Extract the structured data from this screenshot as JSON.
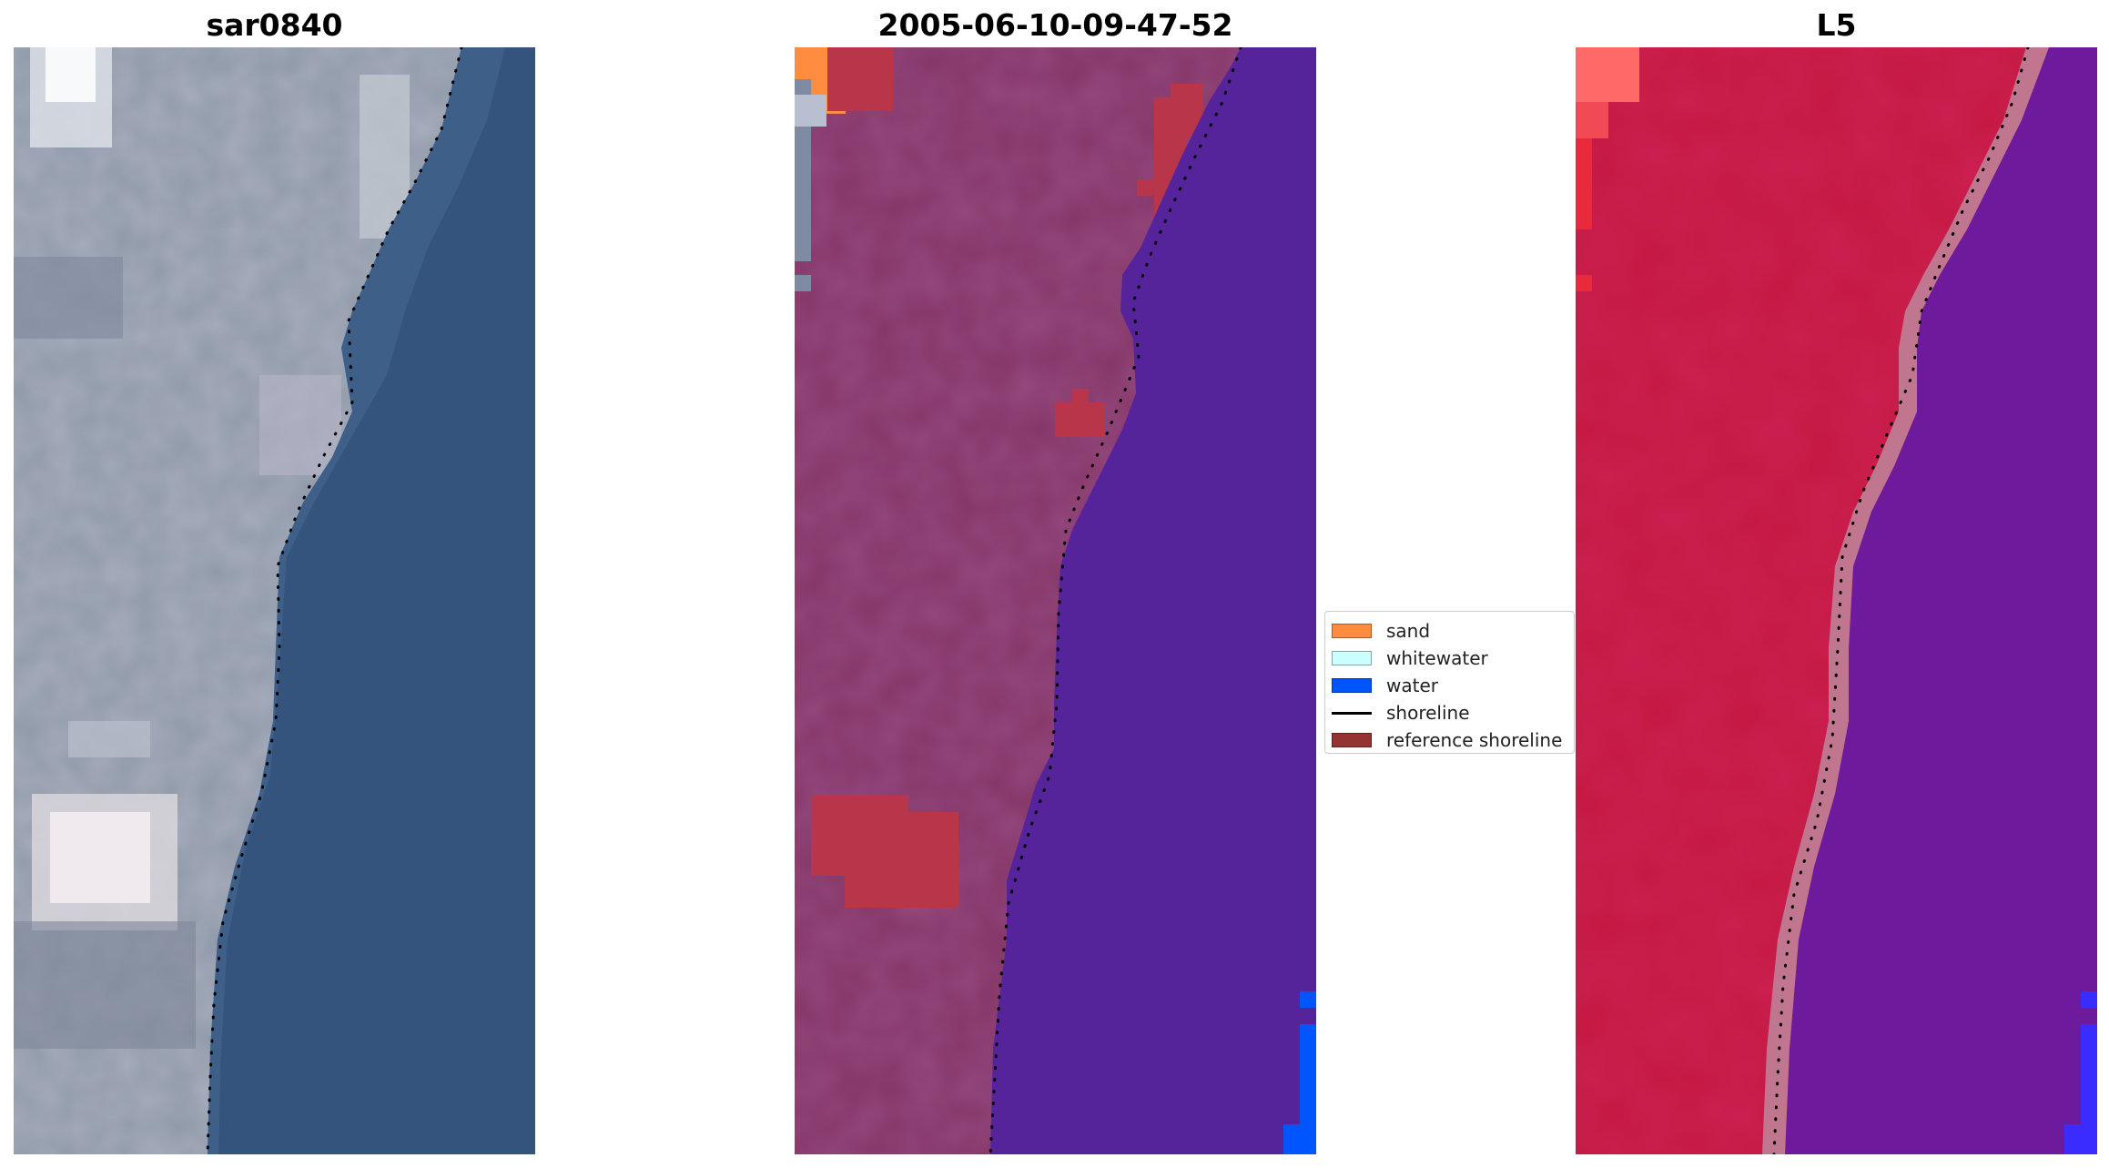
{
  "titles": {
    "left": "sar0840",
    "middle": "2005-06-10-09-47-52",
    "right": "L5"
  },
  "legend": {
    "items": [
      {
        "label": "sand",
        "kind": "patch",
        "color": "#ff8c3f"
      },
      {
        "label": "whitewater",
        "kind": "patch",
        "color": "#ccffff"
      },
      {
        "label": "water",
        "kind": "patch",
        "color": "#0055ff"
      },
      {
        "label": "shoreline",
        "kind": "line",
        "color": "#000000"
      },
      {
        "label": "reference shoreline",
        "kind": "patch",
        "color": "#963232"
      }
    ]
  },
  "colors": {
    "rgb_land": "#8f98a8",
    "rgb_water": "#34547e",
    "class_land": "#833467",
    "class_water": "#55239a",
    "index_land": "#c41840",
    "index_water": "#6e1a9c",
    "shoreline": "#000000"
  }
}
